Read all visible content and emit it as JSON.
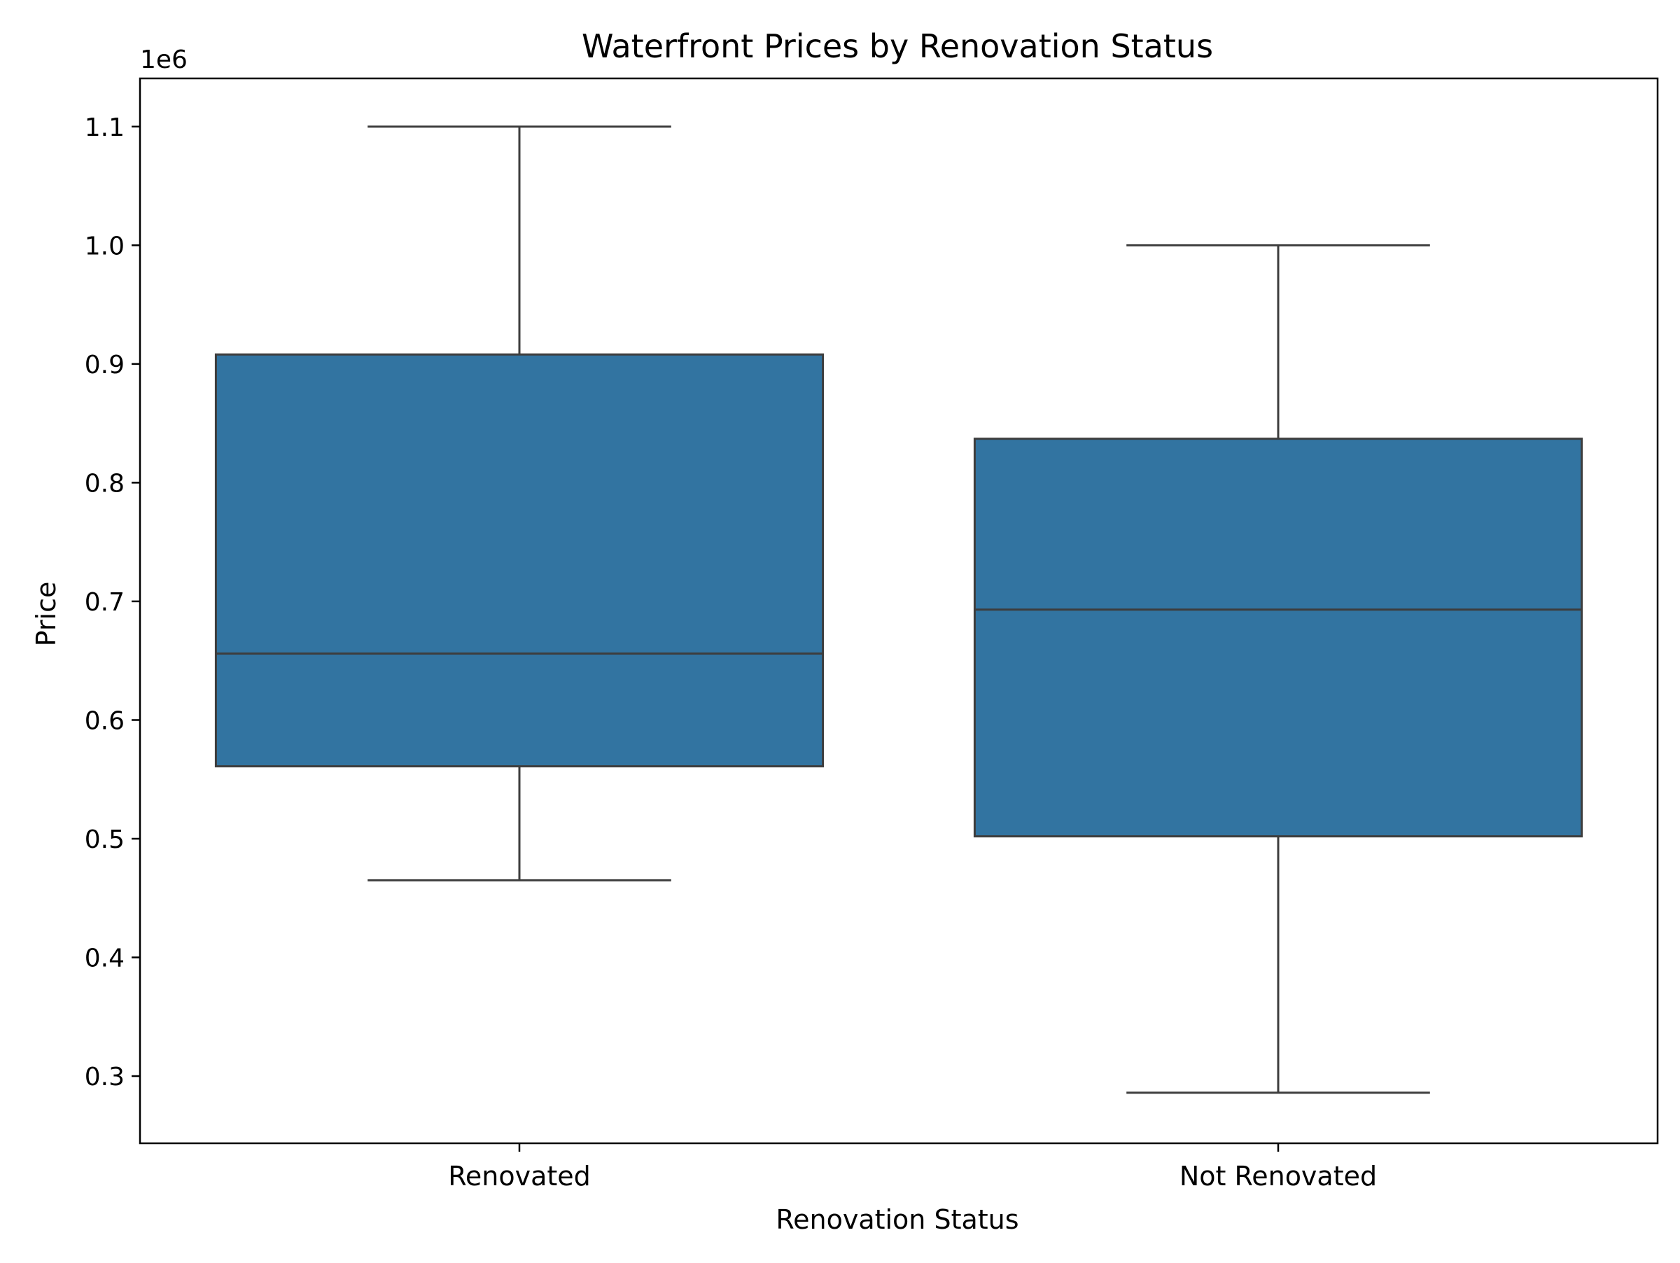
{
  "chart_data": {
    "type": "box",
    "title": "Waterfront Prices by Renovation Status",
    "xlabel": "Renovation Status",
    "ylabel": "Price",
    "y_offset_label": "1e6",
    "y_scale": 1000000,
    "ylim": [
      0.2434,
      1.1406
    ],
    "yticks": [
      0.3,
      0.4,
      0.5,
      0.6,
      0.7,
      0.8,
      0.9,
      1.0,
      1.1
    ],
    "ytick_labels": [
      "0.3",
      "0.4",
      "0.5",
      "0.6",
      "0.7",
      "0.8",
      "0.9",
      "1.0",
      "1.1"
    ],
    "grid": false,
    "categories": [
      "Renovated",
      "Not Renovated"
    ],
    "boxes": [
      {
        "category": "Renovated",
        "whisker_low": 0.465,
        "q1": 0.561,
        "median": 0.656,
        "q3": 0.908,
        "whisker_high": 1.1
      },
      {
        "category": "Not Renovated",
        "whisker_low": 0.286,
        "q1": 0.502,
        "median": 0.693,
        "q3": 0.837,
        "whisker_high": 1.0
      }
    ],
    "colors": {
      "box_fill": "#3274a1",
      "line": "#3d3d3d",
      "axis": "#000000"
    }
  }
}
